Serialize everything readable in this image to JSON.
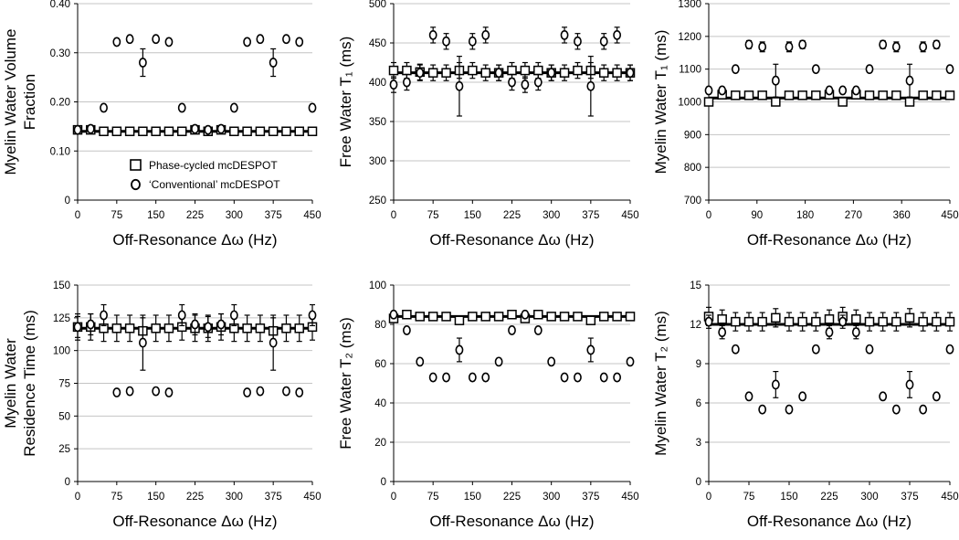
{
  "offsets_hz": [
    0,
    25,
    50,
    75,
    100,
    125,
    150,
    175,
    200,
    225,
    250,
    275,
    300,
    325,
    350,
    375,
    400,
    425,
    450
  ],
  "legend": {
    "phase_cycled": "Phase-cycled mcDESPOT",
    "conventional": "‘Conventional’ mcDESPOT"
  },
  "chart_data": [
    {
      "type": "scatter",
      "ylabel": [
        "Myelin Water Volume",
        "Fraction"
      ],
      "xlabel": "Off-Resonance Δω (Hz)",
      "ylim": [
        0,
        0.4
      ],
      "yticks": [
        "0",
        "0.10",
        "0.20",
        "0.30",
        "0.40"
      ],
      "xticks": [
        "0",
        "75",
        "150",
        "225",
        "300",
        "375",
        "450"
      ],
      "xlim": [
        0,
        450
      ],
      "true_value": 0.14,
      "phase_cycled": [
        0.143,
        0.143,
        0.14,
        0.14,
        0.14,
        0.14,
        0.14,
        0.14,
        0.14,
        0.143,
        0.14,
        0.143,
        0.14,
        0.14,
        0.14,
        0.14,
        0.14,
        0.14,
        0.14
      ],
      "phase_cycled_err": [
        0.004,
        0.004,
        0.003,
        0.003,
        0.003,
        0.003,
        0.003,
        0.003,
        0.003,
        0.004,
        0.003,
        0.004,
        0.003,
        0.003,
        0.003,
        0.003,
        0.003,
        0.003,
        0.003
      ],
      "conventional": [
        0.143,
        0.145,
        0.188,
        0.322,
        0.328,
        0.28,
        0.328,
        0.322,
        0.188,
        0.145,
        0.143,
        0.145,
        0.188,
        0.322,
        0.328,
        0.28,
        0.328,
        0.322,
        0.188
      ],
      "conventional_err": [
        0,
        0,
        0,
        0,
        0,
        0.028,
        0,
        0,
        0,
        0,
        0,
        0,
        0,
        0,
        0,
        0.028,
        0,
        0,
        0
      ],
      "legend": true
    },
    {
      "type": "scatter",
      "ylabel": [
        "Free Water T₁ (ms)"
      ],
      "xlabel": "Off-Resonance Δω (Hz)",
      "ylim": [
        250,
        500
      ],
      "yticks": [
        "250",
        "300",
        "350",
        "400",
        "450",
        "500"
      ],
      "xticks": [
        "0",
        "75",
        "150",
        "225",
        "300",
        "375",
        "450"
      ],
      "xlim": [
        0,
        450
      ],
      "true_value": 412,
      "phase_cycled": [
        415,
        415,
        413,
        412,
        412,
        415,
        415,
        412,
        412,
        415,
        415,
        415,
        412,
        412,
        415,
        415,
        412,
        412,
        412
      ],
      "phase_cycled_err": [
        10,
        10,
        10,
        10,
        10,
        10,
        10,
        10,
        10,
        10,
        10,
        10,
        10,
        10,
        10,
        10,
        10,
        10,
        10
      ],
      "conventional": [
        397,
        400,
        412,
        460,
        452,
        395,
        452,
        460,
        412,
        400,
        397,
        400,
        412,
        460,
        452,
        395,
        452,
        460,
        412
      ],
      "conventional_err": [
        10,
        10,
        10,
        10,
        10,
        38,
        10,
        10,
        10,
        10,
        10,
        10,
        10,
        10,
        10,
        38,
        10,
        10,
        10
      ],
      "legend": false
    },
    {
      "type": "scatter",
      "ylabel": [
        "Myelin Water T₁ (ms)"
      ],
      "xlabel": "Off-Resonance Δω (Hz)",
      "ylim": [
        700,
        1300
      ],
      "yticks": [
        "700",
        "800",
        "900",
        "1000",
        "1100",
        "1200",
        "1300"
      ],
      "xticks": [
        "0",
        "90",
        "180",
        "270",
        "360",
        "450"
      ],
      "xlim": [
        0,
        450
      ],
      "true_value": 1012,
      "phase_cycled": [
        1000,
        1022,
        1020,
        1020,
        1020,
        1000,
        1020,
        1020,
        1020,
        1022,
        1000,
        1022,
        1020,
        1020,
        1020,
        1000,
        1020,
        1020,
        1020
      ],
      "phase_cycled_err": [
        8,
        8,
        8,
        8,
        8,
        8,
        8,
        8,
        8,
        8,
        8,
        8,
        8,
        8,
        8,
        8,
        8,
        8,
        8
      ],
      "conventional": [
        1035,
        1035,
        1100,
        1175,
        1168,
        1065,
        1168,
        1175,
        1100,
        1035,
        1035,
        1035,
        1100,
        1175,
        1168,
        1065,
        1168,
        1175,
        1100
      ],
      "conventional_err": [
        8,
        8,
        0,
        12,
        15,
        50,
        15,
        12,
        0,
        8,
        8,
        8,
        0,
        12,
        15,
        50,
        15,
        12,
        0
      ],
      "legend": false
    },
    {
      "type": "scatter",
      "ylabel": [
        "Myelin Water",
        "Residence Time (ms)"
      ],
      "xlabel": "Off-Resonance Δω (Hz)",
      "ylim": [
        0,
        150
      ],
      "yticks": [
        "0",
        "25",
        "50",
        "75",
        "100",
        "125",
        "150"
      ],
      "xticks": [
        "0",
        "75",
        "150",
        "225",
        "300",
        "375",
        "450"
      ],
      "xlim": [
        0,
        450
      ],
      "true_value": 117,
      "phase_cycled": [
        118,
        118,
        117,
        117,
        117,
        115,
        117,
        117,
        118,
        117,
        117,
        118,
        117,
        117,
        117,
        115,
        117,
        117,
        118
      ],
      "phase_cycled_err": [
        10,
        10,
        10,
        10,
        10,
        10,
        10,
        10,
        10,
        10,
        10,
        10,
        10,
        10,
        10,
        10,
        10,
        10,
        10
      ],
      "conventional": [
        118,
        120,
        127,
        68,
        69,
        106,
        69,
        68,
        127,
        120,
        118,
        120,
        127,
        68,
        69,
        106,
        69,
        68,
        127
      ],
      "conventional_err": [
        8,
        8,
        8,
        2,
        2,
        21,
        2,
        2,
        8,
        8,
        8,
        8,
        8,
        2,
        2,
        21,
        2,
        2,
        8
      ],
      "legend": false
    },
    {
      "type": "scatter",
      "ylabel": [
        "Free Water T₂ (ms)"
      ],
      "xlabel": "Off-Resonance Δω (Hz)",
      "ylim": [
        0,
        100
      ],
      "yticks": [
        "0",
        "20",
        "40",
        "60",
        "80",
        "100"
      ],
      "xticks": [
        "0",
        "75",
        "150",
        "225",
        "300",
        "375",
        "450"
      ],
      "xlim": [
        0,
        450
      ],
      "true_value": 84,
      "phase_cycled": [
        83,
        85,
        84,
        84,
        84,
        82,
        84,
        84,
        84,
        85,
        83,
        85,
        84,
        84,
        84,
        82,
        84,
        84,
        84
      ],
      "phase_cycled_err": [
        1.5,
        1.5,
        1,
        1,
        1,
        1.5,
        1,
        1,
        1,
        1.5,
        1.5,
        1.5,
        1,
        1,
        1,
        1.5,
        1,
        1,
        1
      ],
      "conventional": [
        85,
        77,
        61,
        53,
        53,
        67,
        53,
        53,
        61,
        77,
        85,
        77,
        61,
        53,
        53,
        67,
        53,
        53,
        61
      ],
      "conventional_err": [
        0,
        0,
        0,
        0,
        0,
        6,
        0,
        0,
        0,
        0,
        0,
        0,
        0,
        0,
        0,
        6,
        0,
        0,
        0
      ],
      "legend": false
    },
    {
      "type": "scatter",
      "ylabel": [
        "Myelin Water T₂ (ms)"
      ],
      "xlabel": "Off-Resonance Δω (Hz)",
      "ylim": [
        0,
        15
      ],
      "yticks": [
        "0",
        "3",
        "6",
        "9",
        "12",
        "15"
      ],
      "xticks": [
        "0",
        "75",
        "150",
        "225",
        "300",
        "375",
        "450"
      ],
      "xlim": [
        0,
        450
      ],
      "true_value": 12,
      "phase_cycled": [
        12.6,
        12.4,
        12.2,
        12.2,
        12.2,
        12.5,
        12.2,
        12.2,
        12.2,
        12.4,
        12.6,
        12.4,
        12.2,
        12.2,
        12.2,
        12.5,
        12.2,
        12.2,
        12.2
      ],
      "phase_cycled_err": [
        0.7,
        0.7,
        0.7,
        0.7,
        0.7,
        0.7,
        0.7,
        0.7,
        0.7,
        0.7,
        0.7,
        0.7,
        0.7,
        0.7,
        0.7,
        0.7,
        0.7,
        0.7,
        0.7
      ],
      "conventional": [
        12.2,
        11.4,
        10.1,
        6.5,
        5.5,
        7.4,
        5.5,
        6.5,
        10.1,
        11.4,
        12.2,
        11.4,
        10.1,
        6.5,
        5.5,
        7.4,
        5.5,
        6.5,
        10.1
      ],
      "conventional_err": [
        0.5,
        0.5,
        0,
        0,
        0,
        1,
        0,
        0,
        0,
        0.5,
        0.5,
        0.5,
        0,
        0,
        0,
        1,
        0,
        0,
        0
      ],
      "legend": false
    }
  ]
}
